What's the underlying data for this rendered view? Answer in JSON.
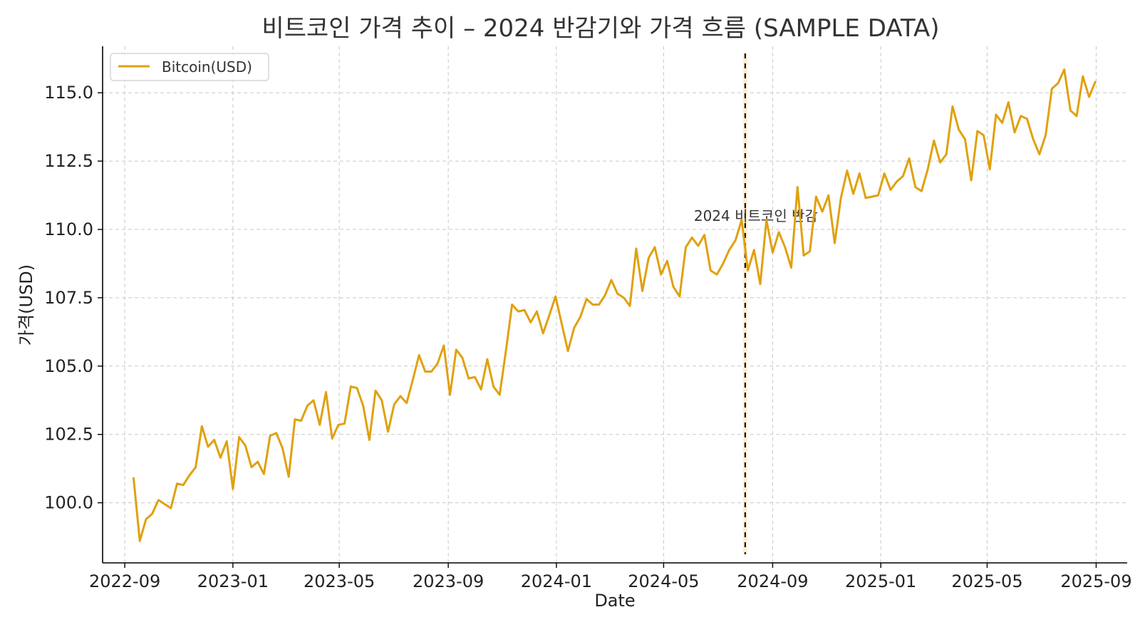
{
  "chart_data": {
    "type": "line",
    "title": "비트코인 가격 추이 – 2024 반감기와 가격 흐름 (SAMPLE DATA)",
    "xlabel": "Date",
    "ylabel": "가격(USD)",
    "xlim": [
      "2022-08-07",
      "2025-10-06"
    ],
    "ylim": [
      97.8,
      116.7
    ],
    "x_ticks": [
      "2022-09",
      "2023-01",
      "2023-05",
      "2023-09",
      "2024-01",
      "2024-05",
      "2024-09",
      "2025-01",
      "2025-05",
      "2025-09"
    ],
    "y_ticks": [
      "100.0",
      "102.5",
      "105.0",
      "107.5",
      "110.0",
      "112.5",
      "115.0"
    ],
    "grid": true,
    "legend_position": "top-left",
    "series": [
      {
        "name": "Bitcoin(USD)",
        "color": "#e0a10f",
        "x": [
          "2022-09-11",
          "2022-09-18",
          "2022-09-25",
          "2022-10-02",
          "2022-10-09",
          "2022-10-16",
          "2022-10-23",
          "2022-10-30",
          "2022-11-06",
          "2022-11-13",
          "2022-11-20",
          "2022-11-27",
          "2022-12-04",
          "2022-12-11",
          "2022-12-18",
          "2022-12-25",
          "2023-01-01",
          "2023-01-08",
          "2023-01-15",
          "2023-01-22",
          "2023-01-29",
          "2023-02-05",
          "2023-02-12",
          "2023-02-19",
          "2023-02-26",
          "2023-03-05",
          "2023-03-12",
          "2023-03-19",
          "2023-03-26",
          "2023-04-02",
          "2023-04-09",
          "2023-04-16",
          "2023-04-23",
          "2023-04-30",
          "2023-05-07",
          "2023-05-14",
          "2023-05-21",
          "2023-05-28",
          "2023-06-04",
          "2023-06-11",
          "2023-06-18",
          "2023-06-25",
          "2023-07-02",
          "2023-07-09",
          "2023-07-16",
          "2023-07-23",
          "2023-07-30",
          "2023-08-06",
          "2023-08-13",
          "2023-08-20",
          "2023-08-27",
          "2023-09-03",
          "2023-09-10",
          "2023-09-17",
          "2023-09-24",
          "2023-10-01",
          "2023-10-08",
          "2023-10-15",
          "2023-10-22",
          "2023-10-29",
          "2023-11-05",
          "2023-11-12",
          "2023-11-19",
          "2023-11-26",
          "2023-12-03",
          "2023-12-10",
          "2023-12-17",
          "2023-12-24",
          "2023-12-31",
          "2024-01-07",
          "2024-01-14",
          "2024-01-21",
          "2024-01-28",
          "2024-02-04",
          "2024-02-11",
          "2024-02-18",
          "2024-02-25",
          "2024-03-03",
          "2024-03-10",
          "2024-03-17",
          "2024-03-24",
          "2024-03-31",
          "2024-04-07",
          "2024-04-14",
          "2024-04-21",
          "2024-04-28",
          "2024-05-05",
          "2024-05-12",
          "2024-05-19",
          "2024-05-26",
          "2024-06-02",
          "2024-06-09",
          "2024-06-16",
          "2024-06-23",
          "2024-06-30",
          "2024-07-07",
          "2024-07-14",
          "2024-07-21",
          "2024-07-28",
          "2024-08-04",
          "2024-08-11",
          "2024-08-18",
          "2024-08-25",
          "2024-09-01",
          "2024-09-08",
          "2024-09-15",
          "2024-09-22",
          "2024-09-29",
          "2024-10-06",
          "2024-10-13",
          "2024-10-20",
          "2024-10-27",
          "2024-11-03",
          "2024-11-10",
          "2024-11-17",
          "2024-11-24",
          "2024-12-01",
          "2024-12-08",
          "2024-12-15",
          "2024-12-22",
          "2024-12-29",
          "2025-01-05",
          "2025-01-12",
          "2025-01-19",
          "2025-01-26",
          "2025-02-02",
          "2025-02-09",
          "2025-02-16",
          "2025-02-23",
          "2025-03-02",
          "2025-03-09",
          "2025-03-16",
          "2025-03-23",
          "2025-03-30",
          "2025-04-06",
          "2025-04-13",
          "2025-04-20",
          "2025-04-27",
          "2025-05-04",
          "2025-05-11",
          "2025-05-18",
          "2025-05-25",
          "2025-06-01",
          "2025-06-08",
          "2025-06-15",
          "2025-06-22",
          "2025-06-29",
          "2025-07-06",
          "2025-07-13",
          "2025-07-20",
          "2025-07-27",
          "2025-08-03",
          "2025-08-10",
          "2025-08-17",
          "2025-08-24",
          "2025-08-31"
        ],
        "y": [
          100.9,
          98.6,
          99.4,
          99.6,
          100.1,
          99.95,
          99.8,
          100.7,
          100.65,
          101.0,
          101.3,
          102.8,
          102.05,
          102.3,
          101.65,
          102.25,
          100.5,
          102.4,
          102.1,
          101.3,
          101.5,
          101.05,
          102.45,
          102.55,
          102.0,
          100.95,
          103.05,
          103.0,
          103.55,
          103.75,
          102.85,
          104.05,
          102.35,
          102.85,
          102.9,
          104.25,
          104.2,
          103.55,
          102.3,
          104.1,
          103.75,
          102.6,
          103.6,
          103.9,
          103.65,
          104.5,
          105.4,
          104.8,
          104.8,
          105.1,
          105.75,
          103.95,
          105.6,
          105.3,
          104.55,
          104.6,
          104.15,
          105.25,
          104.25,
          103.95,
          105.55,
          107.25,
          107.0,
          107.05,
          106.6,
          107.0,
          106.2,
          106.85,
          107.55,
          106.55,
          105.55,
          106.4,
          106.8,
          107.45,
          107.25,
          107.25,
          107.6,
          108.15,
          107.65,
          107.5,
          107.2,
          109.3,
          107.75,
          108.95,
          109.35,
          108.35,
          108.85,
          107.9,
          107.55,
          109.35,
          109.7,
          109.4,
          109.8,
          108.5,
          108.35,
          108.75,
          109.25,
          109.6,
          110.35,
          108.5,
          109.25,
          108.0,
          110.35,
          109.15,
          109.9,
          109.35,
          108.6,
          111.55,
          109.05,
          109.2,
          111.2,
          110.65,
          111.25,
          109.5,
          111.15,
          112.15,
          111.3,
          112.05,
          111.15,
          111.2,
          111.25,
          112.05,
          111.45,
          111.75,
          111.95,
          112.6,
          111.55,
          111.4,
          112.2,
          113.25,
          112.45,
          112.75,
          114.5,
          113.65,
          113.3,
          111.8,
          113.6,
          113.45,
          112.2,
          114.2,
          113.9,
          114.65,
          113.55,
          114.15,
          114.05,
          113.3,
          112.75,
          113.45,
          115.15,
          115.35,
          115.85,
          114.35,
          114.15,
          115.6,
          114.85,
          115.4
        ]
      }
    ],
    "annotations": [
      {
        "text": "2024 비트코인 반감",
        "x": "2024-08-01",
        "y": 110.5,
        "type": "vertical-line",
        "style": "dashed",
        "highlight_color": "#fbeed0"
      }
    ],
    "colors": {
      "series": "#e0a10f",
      "grid": "#c8c8c8",
      "axis": "#000000",
      "annotation_line": "#000000",
      "highlight": "#fbeed0"
    }
  }
}
